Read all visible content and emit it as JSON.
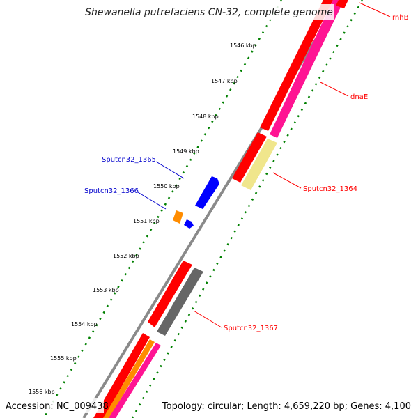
{
  "title": "Shewanella putrefaciens CN-32, complete genome",
  "footer": {
    "accession": "Accession: NC_009438",
    "topology": "Topology: circular; Length: 4,659,220 bp; Genes: 4,100"
  },
  "colors": {
    "backbone": "#8a8a8a",
    "cds_red": "#ff0000",
    "cds_pink": "#ff1493",
    "cds_yellow": "#f0e68c",
    "cds_blue": "#0000ff",
    "cds_orange": "#ff8c00",
    "cds_gray": "#666666",
    "tick_green": "#008000",
    "label_red": "#ff0000",
    "label_blue": "#0000cc"
  },
  "scale": {
    "ticks": [
      "1546 kbp",
      "1547 kbp",
      "1548 kbp",
      "1549 kbp",
      "1550 kbp",
      "1551 kbp",
      "1552 kbp",
      "1553 kbp",
      "1554 kbp",
      "1555 kbp",
      "1556 kbp"
    ]
  },
  "gene_labels": [
    {
      "name": "rnhB",
      "color": "red"
    },
    {
      "name": "dnaE",
      "color": "red"
    },
    {
      "name": "Sputcn32_1364",
      "color": "red"
    },
    {
      "name": "Sputcn32_1365",
      "color": "blue"
    },
    {
      "name": "Sputcn32_1366",
      "color": "blue"
    },
    {
      "name": "Sputcn32_1367",
      "color": "red"
    }
  ]
}
